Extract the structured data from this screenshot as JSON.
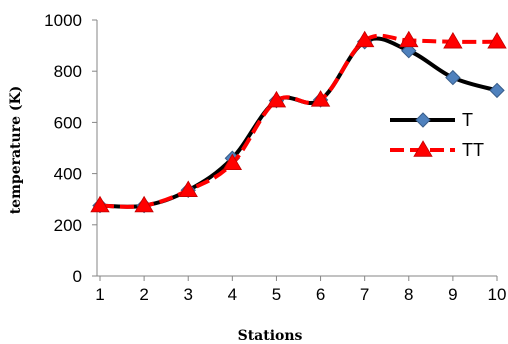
{
  "chart_data": {
    "type": "line",
    "title": "",
    "xlabel": "Stations",
    "ylabel": "temperature (K)",
    "x": [
      1,
      2,
      3,
      4,
      5,
      6,
      7,
      8,
      9,
      10
    ],
    "x_ticks": [
      "1",
      "2",
      "3",
      "4",
      "5",
      "6",
      "7",
      "8",
      "9",
      "10"
    ],
    "y_ticks": [
      "0",
      "200",
      "400",
      "600",
      "800",
      "1000"
    ],
    "ylim": [
      0,
      1000
    ],
    "grid": false,
    "legend_position": "right",
    "series": [
      {
        "name": "T",
        "values": [
          275,
          275,
          335,
          460,
          685,
          688,
          915,
          880,
          775,
          725
        ],
        "line_color": "#000000",
        "marker": "diamond",
        "marker_color": "#4f81bd",
        "dash": "solid"
      },
      {
        "name": "TT",
        "values": [
          275,
          275,
          335,
          440,
          685,
          688,
          920,
          920,
          915,
          915
        ],
        "line_color": "#ff0000",
        "marker": "triangle",
        "marker_color": "#ff0000",
        "dash": "dashed"
      }
    ]
  }
}
